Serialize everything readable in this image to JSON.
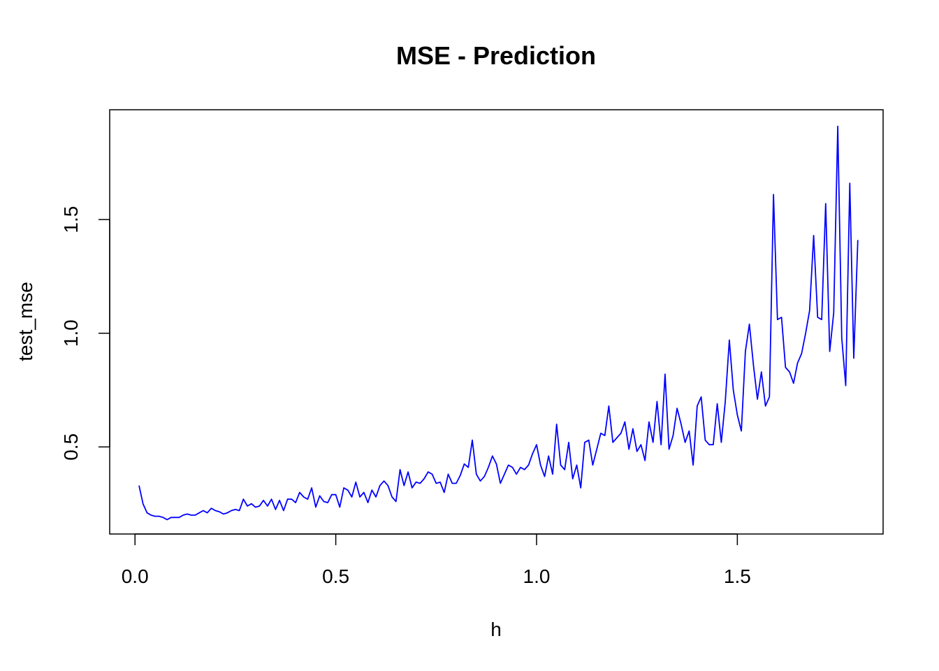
{
  "chart_data": {
    "type": "line",
    "title": "MSE - Prediction",
    "xlabel": "h",
    "ylabel": "test_mse",
    "xlim": [
      -0.063,
      1.863
    ],
    "ylim": [
      0.117,
      1.983
    ],
    "xticks": [
      {
        "value": 0.0,
        "label": "0.0"
      },
      {
        "value": 0.5,
        "label": "0.5"
      },
      {
        "value": 1.0,
        "label": "1.0"
      },
      {
        "value": 1.5,
        "label": "1.5"
      }
    ],
    "yticks": [
      {
        "value": 0.5,
        "label": "0.5"
      },
      {
        "value": 1.0,
        "label": "1.0"
      },
      {
        "value": 1.5,
        "label": "1.5"
      }
    ],
    "grid": false,
    "legend": "none",
    "colors": {
      "line": "#0000ff",
      "axis": "#000000"
    },
    "series": [
      {
        "x": [
          0.01,
          0.02,
          0.03,
          0.04,
          0.05,
          0.06,
          0.07,
          0.08,
          0.09,
          0.1,
          0.11,
          0.12,
          0.13,
          0.14,
          0.15,
          0.16,
          0.17,
          0.18,
          0.19,
          0.2,
          0.21,
          0.22,
          0.23,
          0.24,
          0.25,
          0.26,
          0.27,
          0.28,
          0.29,
          0.3,
          0.31,
          0.32,
          0.33,
          0.34,
          0.35,
          0.36,
          0.37,
          0.38,
          0.39,
          0.4,
          0.41,
          0.42,
          0.43,
          0.44,
          0.45,
          0.46,
          0.47,
          0.48,
          0.49,
          0.5,
          0.51,
          0.52,
          0.53,
          0.54,
          0.55,
          0.56,
          0.57,
          0.58,
          0.59,
          0.6,
          0.61,
          0.62,
          0.63,
          0.64,
          0.65,
          0.66,
          0.67,
          0.68,
          0.69,
          0.7,
          0.71,
          0.72,
          0.73,
          0.74,
          0.75,
          0.76,
          0.77,
          0.78,
          0.79,
          0.8,
          0.81,
          0.82,
          0.83,
          0.84,
          0.85,
          0.86,
          0.87,
          0.88,
          0.89,
          0.9,
          0.91,
          0.92,
          0.93,
          0.94,
          0.95,
          0.96,
          0.97,
          0.98,
          0.99,
          1.0,
          1.01,
          1.02,
          1.03,
          1.04,
          1.05,
          1.06,
          1.07,
          1.08,
          1.09,
          1.1,
          1.11,
          1.12,
          1.13,
          1.14,
          1.15,
          1.16,
          1.17,
          1.18,
          1.19,
          1.2,
          1.21,
          1.22,
          1.23,
          1.24,
          1.25,
          1.26,
          1.27,
          1.28,
          1.29,
          1.3,
          1.31,
          1.32,
          1.33,
          1.34,
          1.35,
          1.36,
          1.37,
          1.38,
          1.39,
          1.4,
          1.41,
          1.42,
          1.43,
          1.44,
          1.45,
          1.46,
          1.47,
          1.48,
          1.49,
          1.5,
          1.51,
          1.52,
          1.53,
          1.54,
          1.55,
          1.56,
          1.57,
          1.58,
          1.59,
          1.6,
          1.61,
          1.62,
          1.63,
          1.64,
          1.65,
          1.66,
          1.67,
          1.68,
          1.69,
          1.7,
          1.71,
          1.72,
          1.73,
          1.74,
          1.75,
          1.76,
          1.77,
          1.78,
          1.79,
          1.8
        ],
        "y": [
          0.33,
          0.25,
          0.21,
          0.2,
          0.195,
          0.195,
          0.19,
          0.18,
          0.19,
          0.19,
          0.19,
          0.2,
          0.205,
          0.2,
          0.2,
          0.21,
          0.22,
          0.21,
          0.23,
          0.22,
          0.215,
          0.205,
          0.21,
          0.22,
          0.225,
          0.22,
          0.27,
          0.24,
          0.25,
          0.235,
          0.24,
          0.265,
          0.24,
          0.27,
          0.225,
          0.265,
          0.22,
          0.27,
          0.27,
          0.255,
          0.3,
          0.28,
          0.27,
          0.32,
          0.235,
          0.285,
          0.26,
          0.255,
          0.29,
          0.29,
          0.235,
          0.32,
          0.31,
          0.28,
          0.345,
          0.28,
          0.3,
          0.255,
          0.31,
          0.28,
          0.33,
          0.35,
          0.33,
          0.28,
          0.26,
          0.4,
          0.33,
          0.39,
          0.32,
          0.345,
          0.34,
          0.36,
          0.39,
          0.38,
          0.34,
          0.345,
          0.3,
          0.38,
          0.34,
          0.34,
          0.375,
          0.425,
          0.41,
          0.53,
          0.38,
          0.35,
          0.37,
          0.41,
          0.46,
          0.425,
          0.34,
          0.38,
          0.42,
          0.41,
          0.38,
          0.41,
          0.4,
          0.42,
          0.47,
          0.51,
          0.42,
          0.37,
          0.46,
          0.38,
          0.6,
          0.42,
          0.4,
          0.52,
          0.36,
          0.42,
          0.32,
          0.52,
          0.53,
          0.42,
          0.49,
          0.56,
          0.55,
          0.68,
          0.52,
          0.54,
          0.56,
          0.61,
          0.49,
          0.58,
          0.48,
          0.51,
          0.44,
          0.61,
          0.52,
          0.7,
          0.51,
          0.82,
          0.49,
          0.55,
          0.67,
          0.6,
          0.52,
          0.57,
          0.42,
          0.68,
          0.72,
          0.53,
          0.51,
          0.51,
          0.69,
          0.52,
          0.7,
          0.97,
          0.75,
          0.64,
          0.57,
          0.92,
          1.04,
          0.86,
          0.71,
          0.83,
          0.68,
          0.72,
          1.61,
          1.06,
          1.07,
          0.85,
          0.83,
          0.78,
          0.87,
          0.91,
          1.0,
          1.1,
          1.43,
          1.07,
          1.06,
          1.57,
          0.92,
          1.09,
          1.91,
          0.98,
          0.77,
          1.66,
          0.89,
          1.41
        ]
      }
    ]
  }
}
